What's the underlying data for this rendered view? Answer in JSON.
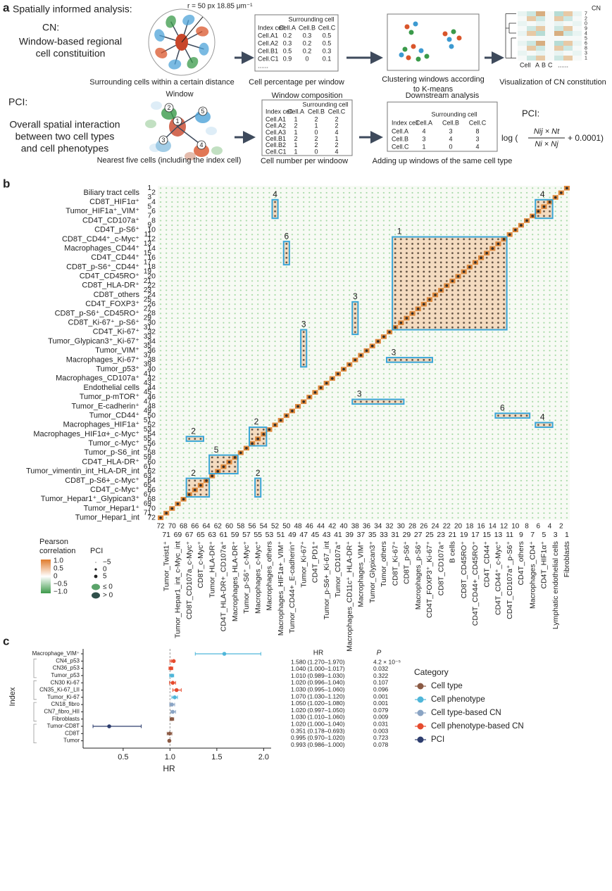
{
  "panel_a": {
    "label": "a",
    "heading": "Spatially informed analysis:",
    "cn": {
      "title": "CN:",
      "lines": [
        "Window-based regional",
        "cell constituition"
      ],
      "radius_label": "r = 50 px 18.85 μm⁻¹",
      "caption1": "Surrounding cells within a certain distance",
      "table": {
        "group": "Surrounding cell",
        "header": [
          "Index cell",
          "Cell.A",
          "Cell.B",
          "Cell.C"
        ],
        "rows": [
          [
            "Cell.A1",
            "0.2",
            "0.3",
            "0.5"
          ],
          [
            "Cell.A2",
            "0.3",
            "0.2",
            "0.5"
          ],
          [
            "Cell.B1",
            "0.5",
            "0.2",
            "0.3"
          ],
          [
            "Cell.C1",
            "0.9",
            "0",
            "0.1"
          ]
        ],
        "more": "......"
      },
      "caption2": "Cell percentage per window",
      "caption3": [
        "Clustering windows according",
        "to K-means"
      ],
      "heatmap_title": "CN",
      "heatmap_rows": [
        "7",
        "2",
        "0",
        "9",
        "4",
        "5",
        "6",
        "8",
        "3",
        "1"
      ],
      "heatmap_axis": [
        "Cell",
        "A",
        "B",
        "C",
        "......"
      ],
      "caption4": "Visualization of CN constitution"
    },
    "pci": {
      "title": "PCI:",
      "lines": [
        "Overall spatial interaction",
        "between two cell types",
        "and cell phenotypes"
      ],
      "window": "Window",
      "diagram_numbers": [
        "1",
        "2",
        "3",
        "4",
        "5"
      ],
      "caption1": "Nearest five cells (including the index cell)",
      "table1_title": "Window composition",
      "table1": {
        "group": "Surrounding cell",
        "header": [
          "Index cell",
          "Cell.A",
          "Cell.B",
          "Cell.C"
        ],
        "rows": [
          [
            "Cell.A1",
            "1",
            "2",
            "2"
          ],
          [
            "Cell.A2",
            "2",
            "1",
            "2"
          ],
          [
            "Cell.A3",
            "1",
            "0",
            "4"
          ],
          [
            "Cell.B1",
            "2",
            "2",
            "1"
          ],
          [
            "Cell.B2",
            "1",
            "2",
            "2"
          ],
          [
            "Cell.C1",
            "1",
            "0",
            "4"
          ]
        ]
      },
      "caption2": "Cell number per windoow",
      "table2_title": "Downstream analysis",
      "table2": {
        "group": "Surrounding cell",
        "header": [
          "Index cell",
          "Cell.A",
          "Cell.B",
          "Cell.C"
        ],
        "rows": [
          [
            "Cell.A",
            "4",
            "3",
            "8"
          ],
          [
            "Cell.B",
            "3",
            "4",
            "3"
          ],
          [
            "Cell.C",
            "1",
            "0",
            "4"
          ]
        ]
      },
      "caption3": "Adding up windows of the same cell type",
      "formula_title": "PCI:",
      "formula": {
        "prefix": "log (",
        "numerator": "Nij × Nt",
        "denominator": "Ni × Nj",
        "suffix": "+ 0.0001)"
      }
    }
  },
  "panel_b": {
    "label": "b",
    "rows": [
      {
        "label": "Biliary tract cells",
        "index": "2"
      },
      {
        "label": "CD8T_HIF1α⁺",
        "index": "4"
      },
      {
        "label": "Tumor_HIF1a⁺_VIM⁺",
        "index": "6"
      },
      {
        "label": "CD4T_CD107a⁺",
        "index": "8"
      },
      {
        "label": "CD4T_p-S6⁺",
        "index": "10"
      },
      {
        "label": "CD8T_CD44⁺_c-Myc⁺",
        "index": "12"
      },
      {
        "label": "Macrophages_CD44⁺",
        "index": "14"
      },
      {
        "label": "CD4T_CD44⁺",
        "index": "16"
      },
      {
        "label": "CD8T_p-S6⁺_CD44⁺",
        "index": "18"
      },
      {
        "label": "CD4T_CD45RO⁺",
        "index": "20"
      },
      {
        "label": "CD8T_HLA-DR⁺",
        "index": "22"
      },
      {
        "label": "CD8T_others",
        "index": "24"
      },
      {
        "label": "CD4T_FOXP3⁺",
        "index": "26"
      },
      {
        "label": "CD8T_p-S6⁺_CD45RO⁺",
        "index": "28"
      },
      {
        "label": "CD8T_Ki-67⁺_p-S6⁺",
        "index": "30"
      },
      {
        "label": "CD4T_Ki-67⁺",
        "index": "32"
      },
      {
        "label": "Tumor_Glypican3⁺_Ki-67⁺",
        "index": "34"
      },
      {
        "label": "Tumor_VIM⁺",
        "index": "36"
      },
      {
        "label": "Macrophages_Ki-67⁺",
        "index": "38"
      },
      {
        "label": "Tumor_p53⁺",
        "index": "40"
      },
      {
        "label": "Macrophages_CD107a⁺",
        "index": "42"
      },
      {
        "label": "Endothelial cells",
        "index": "44"
      },
      {
        "label": "Tumor_p-mTOR⁺",
        "index": "46"
      },
      {
        "label": "Tumor_E-cadherin⁺",
        "index": "48"
      },
      {
        "label": "Tumor_CD44⁺",
        "index": "50"
      },
      {
        "label": "Macrophages_HIF1a⁺",
        "index": "52"
      },
      {
        "label": "Macrophages_HIF1α+_c-Myc⁺",
        "index": "54"
      },
      {
        "label": "Tumor_c-Myc⁺",
        "index": "56"
      },
      {
        "label": "Tumor_p-S6_int",
        "index": "58"
      },
      {
        "label": "CD4T_HLA-DR⁺",
        "index": "60"
      },
      {
        "label": "Tumor_vimentin_int_HLA-DR_int",
        "index": "62"
      },
      {
        "label": "CD8T_p-S6+_c-Myc⁺",
        "index": "64"
      },
      {
        "label": "CD4T_c-Myc⁺",
        "index": "66"
      },
      {
        "label": "Tumor_Hepar1⁺_Glypican3⁺",
        "index": "68"
      },
      {
        "label": "Tumor_Hepar1⁺",
        "index": "70"
      },
      {
        "label": "Tumor_Hepar1_int",
        "index": "72"
      }
    ],
    "odd_row_indices": [
      "1",
      "3",
      "5",
      "7",
      "9",
      "11",
      "13",
      "15",
      "17",
      "19",
      "21",
      "23",
      "25",
      "27",
      "29",
      "31",
      "33",
      "35",
      "37",
      "39",
      "41",
      "43",
      "45",
      "47",
      "49",
      "51",
      "53",
      "55",
      "57",
      "59",
      "61",
      "63",
      "65",
      "67",
      "69",
      "71"
    ],
    "columns": [
      {
        "label": "Tumor_Twist1⁺",
        "index": "71"
      },
      {
        "label": "Tumor_Hepar1_int_c-Myc_int",
        "index": "69"
      },
      {
        "label": "CD8T_CD107a_c-Myc⁺",
        "index": "67"
      },
      {
        "label": "CD8T_c-Myc⁺",
        "index": "65"
      },
      {
        "label": "Tumor_HLA-DR⁺",
        "index": "63"
      },
      {
        "label": "CD4T_HLA-DR+_CD107a⁺",
        "index": "61"
      },
      {
        "label": "Macrophages_HLA-DR⁺",
        "index": "59"
      },
      {
        "label": "Tumor_p-S6⁺_c-Myc⁺",
        "index": "57"
      },
      {
        "label": "Macrophages_c-Myc⁺",
        "index": "55"
      },
      {
        "label": "Macrophages_others",
        "index": "53"
      },
      {
        "label": "Macrophages_HIF1a+_VIM⁺",
        "index": "51"
      },
      {
        "label": "Tumor_CD44+_E-cadherin⁺",
        "index": "49"
      },
      {
        "label": "Tumor_Ki-67⁺",
        "index": "47"
      },
      {
        "label": "CD4T_PD1⁺",
        "index": "45"
      },
      {
        "label": "Tumor_p-S6+_Ki-67_int",
        "index": "43"
      },
      {
        "label": "Tumor_CD107a⁺",
        "index": "41"
      },
      {
        "label": "Macrophages_CD11c⁺_HLA-DR⁺",
        "index": "39"
      },
      {
        "label": "Macrophages_VIM⁺",
        "index": "37"
      },
      {
        "label": "Tumor_Glypican3⁺",
        "index": "35"
      },
      {
        "label": "Tumor_others",
        "index": "33"
      },
      {
        "label": "CD8T_Ki-67⁺",
        "index": "31"
      },
      {
        "label": "CD8T_p-S6⁺",
        "index": "29"
      },
      {
        "label": "Macrophages_p-S6⁺",
        "index": "27"
      },
      {
        "label": "CD4T_FOXP3⁺_Ki-67⁺",
        "index": "25"
      },
      {
        "label": "CD8T_CD107a⁺",
        "index": "23"
      },
      {
        "label": "B cells",
        "index": "21"
      },
      {
        "label": "CD8T_CD45RO⁺",
        "index": "19"
      },
      {
        "label": "CD4T_CD44+_CD45RO⁺",
        "index": "17"
      },
      {
        "label": "CD4T_CD44⁺",
        "index": "15"
      },
      {
        "label": "CD4T_CD44⁺_c-Myc⁺",
        "index": "13"
      },
      {
        "label": "CD4T_CD107a⁺_p-S6⁺",
        "index": "11"
      },
      {
        "label": "CD4T_others",
        "index": "9"
      },
      {
        "label": "Macrophages_CD4⁺",
        "index": "7"
      },
      {
        "label": "CD4T_HIF1α⁺",
        "index": "5"
      },
      {
        "label": "Lymphatic endothelial cells",
        "index": "3"
      },
      {
        "label": "Fibroblasts",
        "index": "1"
      }
    ],
    "even_column_indices": [
      "72",
      "70",
      "68",
      "66",
      "64",
      "62",
      "60",
      "58",
      "56",
      "54",
      "52",
      "50",
      "48",
      "46",
      "44",
      "42",
      "40",
      "38",
      "36",
      "34",
      "32",
      "30",
      "28",
      "26",
      "24",
      "22",
      "20",
      "18",
      "16",
      "14",
      "12",
      "10",
      "8",
      "6",
      "4",
      "2"
    ],
    "box_labels": [
      "4",
      "6",
      "1",
      "3",
      "3",
      "3",
      "4",
      "3",
      "6",
      "4",
      "2",
      "2",
      "5",
      "2",
      "2"
    ],
    "legend": {
      "pearson_title": [
        "Pearson",
        "correlation"
      ],
      "pearson_ticks": [
        "1.0",
        "0.5",
        "0",
        "−0.5",
        "−1.0"
      ],
      "pci_title": "PCI",
      "pci_ticks": [
        "−5",
        "0",
        "5"
      ],
      "pci_signs": [
        "≤ 0",
        "> 0"
      ]
    }
  },
  "chart_data": {
    "type": "forest",
    "panel_label": "c",
    "x_label": "HR",
    "y_label": "Index",
    "hr_header": "HR",
    "p_header": "P",
    "categories": [
      "Macrophage_VIM⁺",
      "CN4_p53",
      "CN36_p53",
      "Tumor_p53",
      "CN30 Ki-67",
      "CN35_Ki-67_LII",
      "Tumor_Ki-67",
      "CN18_fibro",
      "CN7_fibro_HII",
      "Fibroblasts",
      "Tumor-CD8T",
      "CD8T",
      "Tumor"
    ],
    "values": [
      1.58,
      1.04,
      1.01,
      1.02,
      1.03,
      1.07,
      1.05,
      1.02,
      1.03,
      1.02,
      0.351,
      0.995,
      0.993
    ],
    "lower": [
      1.27,
      1.0,
      0.989,
      0.996,
      0.995,
      1.03,
      1.02,
      0.997,
      1.01,
      1.0,
      0.178,
      0.97,
      0.986
    ],
    "upper": [
      1.97,
      1.017,
      1.03,
      1.04,
      1.06,
      1.12,
      1.08,
      1.05,
      1.06,
      1.04,
      0.693,
      1.02,
      1.0
    ],
    "value_labels": [
      "1.580 (1.270–1.970)",
      "1.040 (1.000–1.017)",
      "1.010 (0.989–1.030)",
      "1.020 (0.996–1.040)",
      "1.030 (0.995–1.060)",
      "1.070 (1.030–1.120)",
      "1.050 (1.020–1.080)",
      "1.020 (0.997–1.050)",
      "1.030 (1.010–1.060)",
      "1.020 (1.000–1.040)",
      "0.351 (0.178–0.693)",
      "0.995 (0.970–1.020)",
      "0.993 (0.986–1.000)"
    ],
    "p_values": [
      "4.2 × 10⁻⁵",
      "0.032",
      "0.322",
      "0.107",
      "0.096",
      "0.001",
      "0.001",
      "0.079",
      "0.009",
      "0.031",
      "0.003",
      "0.723",
      "0.078"
    ],
    "colors": [
      "#4fb6d9",
      "#e64b2e",
      "#e64b2e",
      "#4fb6d9",
      "#e64b2e",
      "#e64b2e",
      "#4fb6d9",
      "#8aa4c4",
      "#8aa4c4",
      "#8b5a44",
      "#2d3d6e",
      "#8b5a44",
      "#8b5a44"
    ],
    "xlim": [
      0.14,
      2.08
    ],
    "xticks": [
      0.5,
      {
        "value": 1,
        "label": "1.0"
      },
      1.5,
      {
        "value": 2,
        "label": "2.0"
      }
    ],
    "reference_line": 1,
    "legend": {
      "title": "Category",
      "items": [
        {
          "name": "Cell type",
          "color": "#8b5a44"
        },
        {
          "name": "Cell phenotype",
          "color": "#4fb6d9"
        },
        {
          "name": "Cell type-based CN",
          "color": "#8aa4c4"
        },
        {
          "name": "Cell phenotype-based CN",
          "color": "#e64b2e"
        },
        {
          "name": "PCI",
          "color": "#2d3d6e"
        }
      ]
    }
  }
}
